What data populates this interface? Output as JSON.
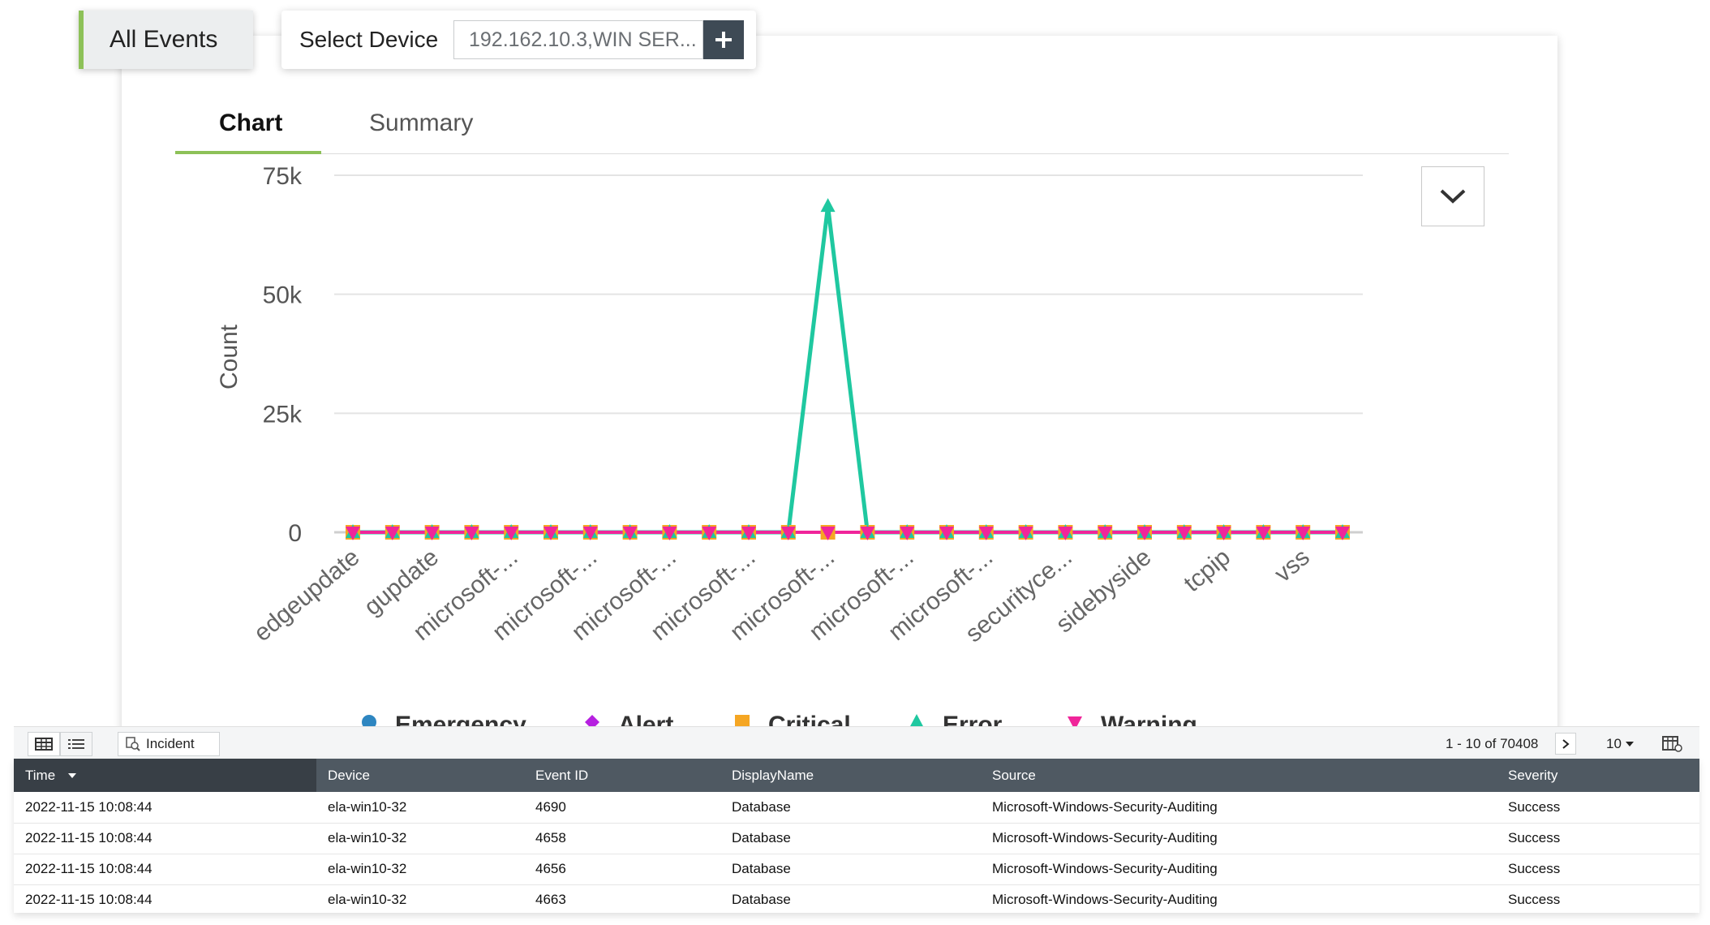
{
  "top": {
    "all_events_label": "All Events",
    "select_device_label": "Select Device",
    "device_value": "192.162.10.3,WIN SER...",
    "add_icon": "plus-icon"
  },
  "tabs": [
    {
      "label": "Chart",
      "active": true
    },
    {
      "label": "Summary",
      "active": false
    }
  ],
  "colors": {
    "accent": "#8dc158",
    "emergency": "#2e86c1",
    "alert": "#b620e0",
    "critical": "#f5a623",
    "error": "#1fc8a0",
    "warning": "#f0259a"
  },
  "chart_data": {
    "type": "line",
    "ylabel": "Count",
    "ylim": [
      0,
      75000
    ],
    "yticks": [
      {
        "value": 0,
        "label": "0"
      },
      {
        "value": 25000,
        "label": "25k"
      },
      {
        "value": 50000,
        "label": "50k"
      },
      {
        "value": 75000,
        "label": "75k"
      }
    ],
    "x_labels": [
      {
        "index": 0,
        "label": "edgeupdate"
      },
      {
        "index": 2,
        "label": "gupdate"
      },
      {
        "index": 4,
        "label": "microsoft-..."
      },
      {
        "index": 6,
        "label": "microsoft-..."
      },
      {
        "index": 8,
        "label": "microsoft-..."
      },
      {
        "index": 10,
        "label": "microsoft-..."
      },
      {
        "index": 12,
        "label": "microsoft-..."
      },
      {
        "index": 14,
        "label": "microsoft-..."
      },
      {
        "index": 16,
        "label": "microsoft-..."
      },
      {
        "index": 18,
        "label": "securityce..."
      },
      {
        "index": 20,
        "label": "sidebyside"
      },
      {
        "index": 22,
        "label": "tcpip"
      },
      {
        "index": 24,
        "label": "vss"
      }
    ],
    "point_count": 26,
    "series": [
      {
        "name": "Emergency",
        "marker": "circle",
        "values": [
          0,
          0,
          0,
          0,
          0,
          0,
          0,
          0,
          0,
          0,
          0,
          0,
          0,
          0,
          0,
          0,
          0,
          0,
          0,
          0,
          0,
          0,
          0,
          0,
          0,
          0
        ]
      },
      {
        "name": "Alert",
        "marker": "diamond",
        "values": [
          0,
          0,
          0,
          0,
          0,
          0,
          0,
          0,
          0,
          0,
          0,
          0,
          0,
          0,
          0,
          0,
          0,
          0,
          0,
          0,
          0,
          0,
          0,
          0,
          0,
          0
        ]
      },
      {
        "name": "Critical",
        "marker": "square",
        "values": [
          0,
          0,
          0,
          0,
          0,
          0,
          0,
          0,
          0,
          0,
          0,
          0,
          0,
          0,
          0,
          0,
          0,
          0,
          0,
          0,
          0,
          0,
          0,
          0,
          0,
          0
        ]
      },
      {
        "name": "Error",
        "marker": "triangle",
        "values": [
          0,
          0,
          0,
          0,
          0,
          0,
          0,
          0,
          0,
          0,
          0,
          0,
          68500,
          0,
          0,
          0,
          0,
          0,
          0,
          0,
          0,
          0,
          0,
          0,
          0,
          0
        ]
      },
      {
        "name": "Warning",
        "marker": "triangle-down",
        "values": [
          0,
          0,
          0,
          0,
          0,
          0,
          0,
          0,
          0,
          0,
          0,
          0,
          0,
          0,
          0,
          0,
          0,
          0,
          0,
          0,
          0,
          0,
          0,
          0,
          0,
          0
        ]
      }
    ],
    "grid": true,
    "legend": "bottom"
  },
  "toolbar": {
    "incident_label": "Incident",
    "pager_text": "1 - 10 of 70408",
    "per_page": "10"
  },
  "table": {
    "columns": [
      "Time",
      "Device",
      "Event ID",
      "DisplayName",
      "Source",
      "Severity"
    ],
    "rows": [
      [
        "2022-11-15 10:08:44",
        "ela-win10-32",
        "4690",
        "Database",
        "Microsoft-Windows-Security-Auditing",
        "Success"
      ],
      [
        "2022-11-15 10:08:44",
        "ela-win10-32",
        "4658",
        "Database",
        "Microsoft-Windows-Security-Auditing",
        "Success"
      ],
      [
        "2022-11-15 10:08:44",
        "ela-win10-32",
        "4656",
        "Database",
        "Microsoft-Windows-Security-Auditing",
        "Success"
      ],
      [
        "2022-11-15 10:08:44",
        "ela-win10-32",
        "4663",
        "Database",
        "Microsoft-Windows-Security-Auditing",
        "Success"
      ]
    ]
  }
}
